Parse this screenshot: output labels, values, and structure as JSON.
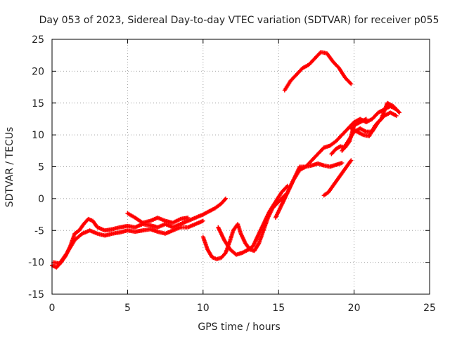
{
  "chart_data": {
    "type": "scatter",
    "title": "Day 053 of 2023, Sidereal Day-to-day VTEC variation (SDTVAR) for receiver p055",
    "xlabel": "GPS time / hours",
    "ylabel": "SDTVAR / TECUs",
    "xlim": [
      0,
      25
    ],
    "ylim": [
      -15,
      25
    ],
    "xticks": [
      0,
      5,
      10,
      15,
      20,
      25
    ],
    "yticks": [
      -15,
      -10,
      -5,
      0,
      5,
      10,
      15,
      20,
      25
    ],
    "grid": true,
    "marker": "plus",
    "color": "#ff0000",
    "series": [
      {
        "values": [
          [
            0.0,
            -10.5
          ],
          [
            0.3,
            -10.8
          ],
          [
            0.6,
            -10.0
          ],
          [
            0.9,
            -9.0
          ],
          [
            1.2,
            -7.5
          ],
          [
            1.5,
            -5.5
          ],
          [
            1.8,
            -5.0
          ],
          [
            2.1,
            -4.0
          ],
          [
            2.4,
            -3.2
          ],
          [
            2.7,
            -3.5
          ],
          [
            3.0,
            -4.5
          ],
          [
            3.5,
            -5.0
          ],
          [
            4.0,
            -4.8
          ],
          [
            4.5,
            -4.5
          ],
          [
            5.0,
            -4.3
          ],
          [
            5.5,
            -4.5
          ],
          [
            6.0,
            -4.0
          ],
          [
            6.5,
            -4.2
          ],
          [
            7.0,
            -4.5
          ],
          [
            7.5,
            -4.0
          ],
          [
            8.0,
            -4.5
          ],
          [
            8.5,
            -4.0
          ],
          [
            9.0,
            -3.5
          ],
          [
            9.5,
            -3.0
          ],
          [
            10.0,
            -2.5
          ],
          [
            10.4,
            -2.0
          ],
          [
            10.8,
            -1.5
          ],
          [
            11.2,
            -0.8
          ],
          [
            11.5,
            0.0
          ]
        ]
      },
      {
        "values": [
          [
            0.1,
            -10.0
          ],
          [
            0.5,
            -10.2
          ],
          [
            1.0,
            -8.5
          ],
          [
            1.5,
            -6.5
          ],
          [
            2.0,
            -5.5
          ],
          [
            2.5,
            -5.0
          ],
          [
            3.0,
            -5.5
          ],
          [
            3.5,
            -5.8
          ],
          [
            4.0,
            -5.5
          ],
          [
            4.5,
            -5.3
          ],
          [
            5.0,
            -5.0
          ],
          [
            5.5,
            -5.2
          ],
          [
            6.0,
            -5.0
          ],
          [
            6.5,
            -4.8
          ],
          [
            7.0,
            -5.2
          ],
          [
            7.5,
            -5.5
          ],
          [
            8.0,
            -5.0
          ],
          [
            8.5,
            -4.5
          ],
          [
            9.0,
            -4.5
          ],
          [
            9.5,
            -4.0
          ],
          [
            10.0,
            -3.5
          ]
        ]
      },
      {
        "values": [
          [
            5.0,
            -2.3
          ],
          [
            5.5,
            -3.0
          ],
          [
            6.0,
            -3.8
          ],
          [
            6.5,
            -3.5
          ],
          [
            7.0,
            -3.0
          ],
          [
            7.5,
            -3.5
          ],
          [
            8.0,
            -3.8
          ],
          [
            8.5,
            -3.2
          ],
          [
            9.0,
            -3.0
          ]
        ]
      },
      {
        "values": [
          [
            10.0,
            -6.0
          ],
          [
            10.3,
            -8.0
          ],
          [
            10.6,
            -9.2
          ],
          [
            10.9,
            -9.5
          ],
          [
            11.2,
            -9.3
          ],
          [
            11.5,
            -8.5
          ],
          [
            11.8,
            -6.5
          ],
          [
            12.0,
            -5.0
          ],
          [
            12.3,
            -4.0
          ],
          [
            12.5,
            -5.5
          ],
          [
            12.8,
            -7.0
          ],
          [
            13.1,
            -8.0
          ],
          [
            13.4,
            -8.2
          ],
          [
            13.7,
            -7.0
          ],
          [
            14.0,
            -5.0
          ],
          [
            14.3,
            -3.0
          ],
          [
            14.6,
            -1.5
          ],
          [
            15.0,
            -0.5
          ],
          [
            15.4,
            0.5
          ]
        ]
      },
      {
        "values": [
          [
            11.0,
            -4.5
          ],
          [
            11.4,
            -6.5
          ],
          [
            11.8,
            -8.0
          ],
          [
            12.2,
            -8.8
          ],
          [
            12.6,
            -8.5
          ],
          [
            13.0,
            -8.0
          ],
          [
            13.3,
            -7.5
          ],
          [
            13.6,
            -6.0
          ],
          [
            14.0,
            -4.0
          ],
          [
            14.4,
            -2.0
          ],
          [
            14.8,
            -0.5
          ],
          [
            15.2,
            1.0
          ],
          [
            15.6,
            2.0
          ]
        ]
      },
      {
        "values": [
          [
            14.8,
            -3.0
          ],
          [
            15.1,
            -1.5
          ],
          [
            15.4,
            0.0
          ],
          [
            15.7,
            1.5
          ],
          [
            16.0,
            3.0
          ],
          [
            16.4,
            4.5
          ],
          [
            16.8,
            5.0
          ],
          [
            17.2,
            5.2
          ],
          [
            17.6,
            5.5
          ],
          [
            18.0,
            5.2
          ],
          [
            18.4,
            5.0
          ],
          [
            18.8,
            5.3
          ],
          [
            19.2,
            5.6
          ]
        ]
      },
      {
        "values": [
          [
            15.2,
            -1.0
          ],
          [
            15.6,
            1.0
          ],
          [
            16.0,
            3.0
          ],
          [
            16.4,
            5.0
          ],
          [
            16.8,
            5.0
          ],
          [
            17.2,
            6.0
          ],
          [
            17.6,
            7.0
          ],
          [
            18.0,
            8.0
          ],
          [
            18.4,
            8.3
          ],
          [
            18.8,
            9.0
          ],
          [
            19.2,
            10.0
          ],
          [
            19.6,
            11.0
          ],
          [
            20.0,
            12.0
          ],
          [
            20.4,
            12.5
          ],
          [
            20.8,
            12.0
          ],
          [
            21.2,
            12.5
          ],
          [
            21.6,
            13.5
          ],
          [
            22.0,
            14.0
          ],
          [
            22.4,
            14.5
          ],
          [
            22.8,
            14.0
          ]
        ]
      },
      {
        "values": [
          [
            15.4,
            17.0
          ],
          [
            15.8,
            18.5
          ],
          [
            16.2,
            19.5
          ],
          [
            16.6,
            20.5
          ],
          [
            17.0,
            21.0
          ],
          [
            17.4,
            22.0
          ],
          [
            17.8,
            23.0
          ],
          [
            18.2,
            22.8
          ],
          [
            18.6,
            21.5
          ],
          [
            19.0,
            20.5
          ],
          [
            19.4,
            19.0
          ],
          [
            19.8,
            18.0
          ]
        ]
      },
      {
        "values": [
          [
            18.0,
            0.5
          ],
          [
            18.3,
            1.0
          ],
          [
            18.6,
            2.0
          ],
          [
            18.9,
            3.0
          ],
          [
            19.2,
            4.0
          ],
          [
            19.5,
            5.0
          ],
          [
            19.8,
            6.0
          ]
        ]
      },
      {
        "values": [
          [
            19.2,
            7.5
          ],
          [
            19.6,
            9.0
          ],
          [
            20.0,
            10.5
          ],
          [
            20.4,
            11.0
          ],
          [
            20.8,
            10.5
          ],
          [
            21.2,
            10.5
          ],
          [
            21.6,
            12.0
          ],
          [
            22.0,
            13.0
          ],
          [
            22.4,
            13.5
          ],
          [
            22.8,
            13.0
          ]
        ]
      },
      {
        "values": [
          [
            19.8,
            11.0
          ],
          [
            20.2,
            10.5
          ],
          [
            20.6,
            10.0
          ],
          [
            21.0,
            9.8
          ],
          [
            21.4,
            11.5
          ],
          [
            21.8,
            12.5
          ],
          [
            22.2,
            15.0
          ],
          [
            22.6,
            14.5
          ],
          [
            23.0,
            13.5
          ]
        ]
      },
      {
        "values": [
          [
            18.5,
            7.0
          ],
          [
            18.8,
            7.8
          ],
          [
            19.1,
            8.2
          ],
          [
            19.4,
            8.0
          ],
          [
            19.7,
            9.0
          ],
          [
            20.0,
            11.5
          ],
          [
            20.4,
            12.0
          ],
          [
            20.8,
            12.5
          ]
        ]
      }
    ]
  }
}
